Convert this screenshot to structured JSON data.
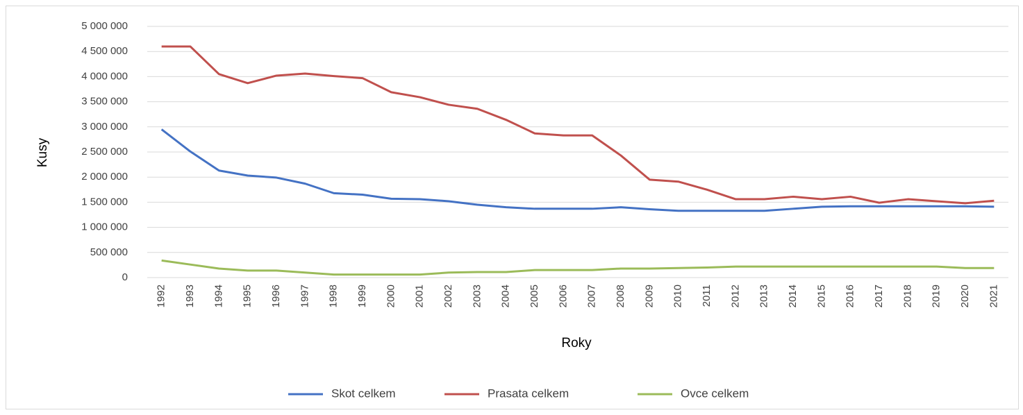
{
  "chart_data": {
    "type": "line",
    "x_label": "Roky",
    "y_label": "Kusy",
    "categories": [
      "1992",
      "1993",
      "1994",
      "1995",
      "1996",
      "1997",
      "1998",
      "1999",
      "2000",
      "2001",
      "2002",
      "2003",
      "2004",
      "2005",
      "2006",
      "2007",
      "2008",
      "2009",
      "2010",
      "2011",
      "2012",
      "2013",
      "2014",
      "2015",
      "2016",
      "2017",
      "2018",
      "2019",
      "2020",
      "2021"
    ],
    "series": [
      {
        "name": "Skot celkem",
        "color": "#4472c4",
        "values": [
          2950000,
          2510000,
          2130000,
          2030000,
          1990000,
          1870000,
          1680000,
          1650000,
          1570000,
          1560000,
          1520000,
          1450000,
          1400000,
          1370000,
          1370000,
          1370000,
          1400000,
          1360000,
          1330000,
          1330000,
          1330000,
          1330000,
          1370000,
          1410000,
          1420000,
          1420000,
          1420000,
          1420000,
          1420000,
          1410000
        ]
      },
      {
        "name": "Prasata celkem",
        "color": "#c0504d",
        "values": [
          4600000,
          4600000,
          4050000,
          3870000,
          4020000,
          4060000,
          4010000,
          3970000,
          3690000,
          3590000,
          3440000,
          3360000,
          3140000,
          2870000,
          2830000,
          2830000,
          2430000,
          1950000,
          1910000,
          1750000,
          1560000,
          1560000,
          1610000,
          1560000,
          1610000,
          1490000,
          1560000,
          1520000,
          1480000,
          1530000
        ]
      },
      {
        "name": "Ovce celkem",
        "color": "#9bbb59",
        "values": [
          340000,
          260000,
          180000,
          140000,
          140000,
          100000,
          60000,
          60000,
          60000,
          60000,
          100000,
          110000,
          110000,
          150000,
          150000,
          150000,
          180000,
          180000,
          190000,
          200000,
          220000,
          220000,
          220000,
          220000,
          220000,
          220000,
          220000,
          220000,
          190000,
          190000
        ]
      }
    ],
    "ylim": [
      0,
      5000000
    ],
    "yticks": [
      0,
      {
        "value": 500000,
        "label": "500 000"
      },
      {
        "value": 1000000,
        "label": "1 000 000"
      },
      {
        "value": 1500000,
        "label": "1 500 000"
      },
      {
        "value": 2000000,
        "label": "2 000 000"
      },
      {
        "value": 2500000,
        "label": "2 500 000"
      },
      {
        "value": 3000000,
        "label": "3 000 000"
      },
      {
        "value": 3500000,
        "label": "3 500 000"
      },
      {
        "value": 4000000,
        "label": "4 000 000"
      },
      {
        "value": 4500000,
        "label": "4 500 000"
      },
      {
        "value": 5000000,
        "label": "5 000 000"
      }
    ],
    "grid": true,
    "legend": "bottom"
  }
}
